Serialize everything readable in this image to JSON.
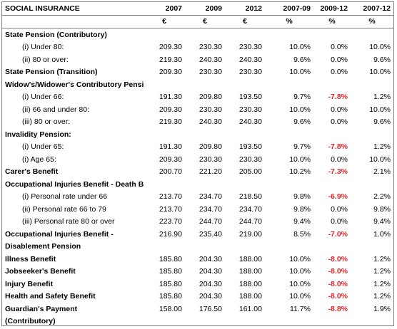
{
  "header": {
    "title": "SOCIAL INSURANCE",
    "columns": [
      "2007",
      "2009",
      "2012",
      "2007-09",
      "2009-12",
      "2007-12"
    ],
    "units": [
      "€",
      "€",
      "€",
      "%",
      "%",
      "%"
    ]
  },
  "rows": [
    {
      "label": "State Pension (Contributory)",
      "type": "heading",
      "values": [
        "",
        "",
        "",
        "",
        "",
        ""
      ]
    },
    {
      "label": "(i) Under 80:",
      "type": "sub",
      "values": [
        "209.30",
        "230.30",
        "230.30",
        "10.0%",
        "0.0%",
        "10.0%"
      ]
    },
    {
      "label": "(ii) 80 or over:",
      "type": "sub",
      "values": [
        "219.30",
        "240.30",
        "240.30",
        "9.6%",
        "0.0%",
        "9.6%"
      ]
    },
    {
      "label": "State Pension (Transition)",
      "type": "main",
      "values": [
        "209.30",
        "230.30",
        "230.30",
        "10.0%",
        "0.0%",
        "10.0%"
      ]
    },
    {
      "label": "Widow's/Widower's Contributory Pension",
      "type": "heading",
      "values": [
        "",
        "",
        "",
        "",
        "",
        ""
      ]
    },
    {
      "label": "(i) Under 66:",
      "type": "sub",
      "values": [
        "191.30",
        "209.80",
        "193.50",
        "9.7%",
        "-7.8%",
        "1.2%"
      ]
    },
    {
      "label": "(ii) 66 and under 80:",
      "type": "sub",
      "values": [
        "209.30",
        "230.30",
        "230.30",
        "10.0%",
        "0.0%",
        "10.0%"
      ]
    },
    {
      "label": "(iii) 80 or over:",
      "type": "sub",
      "values": [
        "219.30",
        "240.30",
        "240.30",
        "9.6%",
        "0.0%",
        "9.6%"
      ]
    },
    {
      "label": "Invalidity Pension:",
      "type": "heading",
      "values": [
        "",
        "",
        "",
        "",
        "",
        ""
      ]
    },
    {
      "label": "(i) Under 65:",
      "type": "sub",
      "values": [
        "191.30",
        "209.80",
        "193.50",
        "9.7%",
        "-7.8%",
        "1.2%"
      ]
    },
    {
      "label": "(i) Age 65:",
      "type": "sub",
      "values": [
        "209.30",
        "230.30",
        "230.30",
        "10.0%",
        "0.0%",
        "10.0%"
      ]
    },
    {
      "label": "Carer's Benefit",
      "type": "main",
      "values": [
        "200.70",
        "221.20",
        "205.00",
        "10.2%",
        "-7.3%",
        "2.1%"
      ]
    },
    {
      "label": "Occupational Injuries Benefit - Death Benefit Pension",
      "type": "heading",
      "values": [
        "",
        "",
        "",
        "",
        "",
        ""
      ]
    },
    {
      "label": "(i) Personal rate under 66",
      "type": "sub",
      "values": [
        "213.70",
        "234.70",
        "218.50",
        "9.8%",
        "-6.9%",
        "2.2%"
      ]
    },
    {
      "label": "(ii) Personal rate 66 to 79",
      "type": "sub",
      "values": [
        "213.70",
        "234.70",
        "234.70",
        "9.8%",
        "0.0%",
        "9.8%"
      ]
    },
    {
      "label": "(iii) Personal rate 80 or over",
      "type": "sub",
      "values": [
        "223.70",
        "244.70",
        "244.70",
        "9.4%",
        "0.0%",
        "9.4%"
      ]
    },
    {
      "label": "Occupational Injuries Benefit -",
      "type": "main",
      "values": [
        "216.90",
        "235.40",
        "219.00",
        "8.5%",
        "-7.0%",
        "1.0%"
      ]
    },
    {
      "label": "Disablement Pension",
      "type": "heading",
      "values": [
        "",
        "",
        "",
        "",
        "",
        ""
      ]
    },
    {
      "label": "Illness Benefit",
      "type": "main",
      "values": [
        "185.80",
        "204.30",
        "188.00",
        "10.0%",
        "-8.0%",
        "1.2%"
      ]
    },
    {
      "label": "Jobseeker's Benefit",
      "type": "main",
      "values": [
        "185.80",
        "204.30",
        "188.00",
        "10.0%",
        "-8.0%",
        "1.2%"
      ]
    },
    {
      "label": "Injury Benefit",
      "type": "main",
      "values": [
        "185.80",
        "204.30",
        "188.00",
        "10.0%",
        "-8.0%",
        "1.2%"
      ]
    },
    {
      "label": "Health and Safety Benefit",
      "type": "main",
      "values": [
        "185.80",
        "204.30",
        "188.00",
        "10.0%",
        "-8.0%",
        "1.2%"
      ]
    },
    {
      "label": "Guardian's Payment",
      "type": "main",
      "values": [
        "158.00",
        "176.50",
        "161.00",
        "11.7%",
        "-8.8%",
        "1.9%"
      ]
    },
    {
      "label": "(Contributory)",
      "type": "heading",
      "values": [
        "",
        "",
        "",
        "",
        "",
        ""
      ]
    }
  ],
  "colors": {
    "negative": "#e4252b",
    "border": "#7f7f7f"
  }
}
